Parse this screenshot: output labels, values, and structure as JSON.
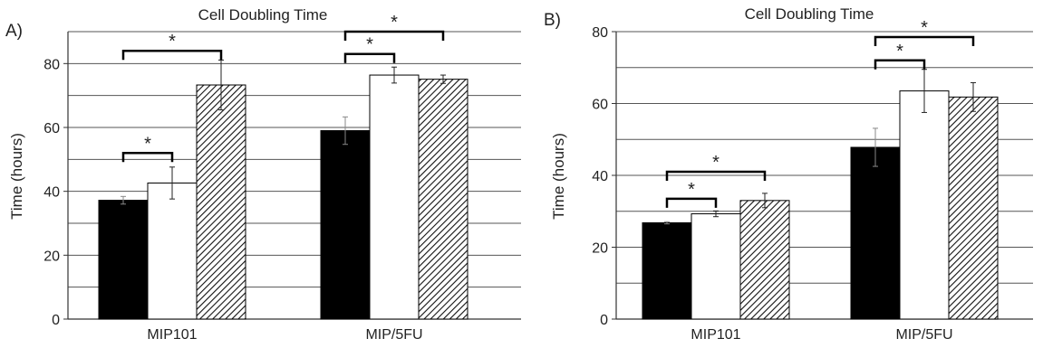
{
  "chart_data": [
    {
      "panel_label": "A)",
      "type": "bar",
      "title": "Cell Doubling Time",
      "xlabel": "",
      "ylabel": "Time (hours)",
      "categories": [
        "MIP101",
        "MIP/5FU"
      ],
      "ylim": [
        0,
        90
      ],
      "yticks": [
        0,
        20,
        40,
        60,
        80
      ],
      "grid": true,
      "series": [
        {
          "fill": "black",
          "values": [
            37.2,
            59.0
          ],
          "errors": [
            1.2,
            4.3
          ]
        },
        {
          "fill": "white",
          "values": [
            42.6,
            76.4
          ],
          "errors": [
            5.0,
            2.5
          ]
        },
        {
          "fill": "hatched",
          "values": [
            73.3,
            75.1
          ],
          "errors": [
            7.8,
            1.3
          ]
        }
      ],
      "significance": [
        {
          "label": "*",
          "category": 0,
          "from_series": 0,
          "to_series": 1,
          "y": 52
        },
        {
          "label": "*",
          "category": 0,
          "from_series": 0,
          "to_series": 2,
          "y": 84
        },
        {
          "label": "*",
          "category": 1,
          "from_series": 0,
          "to_series": 1,
          "y": 83
        },
        {
          "label": "*",
          "category": 1,
          "from_series": 0,
          "to_series": 2,
          "y": 90
        }
      ]
    },
    {
      "panel_label": "B)",
      "type": "bar",
      "title": "Cell Doubling Time",
      "xlabel": "",
      "ylabel": "Time (hours)",
      "categories": [
        "MIP101",
        "MIP/5FU"
      ],
      "ylim": [
        0,
        80
      ],
      "yticks": [
        0,
        20,
        40,
        60,
        80
      ],
      "grid": true,
      "series": [
        {
          "fill": "black",
          "values": [
            26.8,
            47.8
          ],
          "errors": [
            0.3,
            5.3
          ]
        },
        {
          "fill": "white",
          "values": [
            29.3,
            63.5
          ],
          "errors": [
            0.8,
            6.0
          ]
        },
        {
          "fill": "hatched",
          "values": [
            33.0,
            61.8
          ],
          "errors": [
            2.0,
            4.0
          ]
        }
      ],
      "significance": [
        {
          "label": "*",
          "category": 0,
          "from_series": 0,
          "to_series": 1,
          "y": 33.5
        },
        {
          "label": "*",
          "category": 0,
          "from_series": 0,
          "to_series": 2,
          "y": 41
        },
        {
          "label": "*",
          "category": 1,
          "from_series": 0,
          "to_series": 1,
          "y": 72
        },
        {
          "label": "*",
          "category": 1,
          "from_series": 0,
          "to_series": 2,
          "y": 78.5
        }
      ]
    }
  ]
}
